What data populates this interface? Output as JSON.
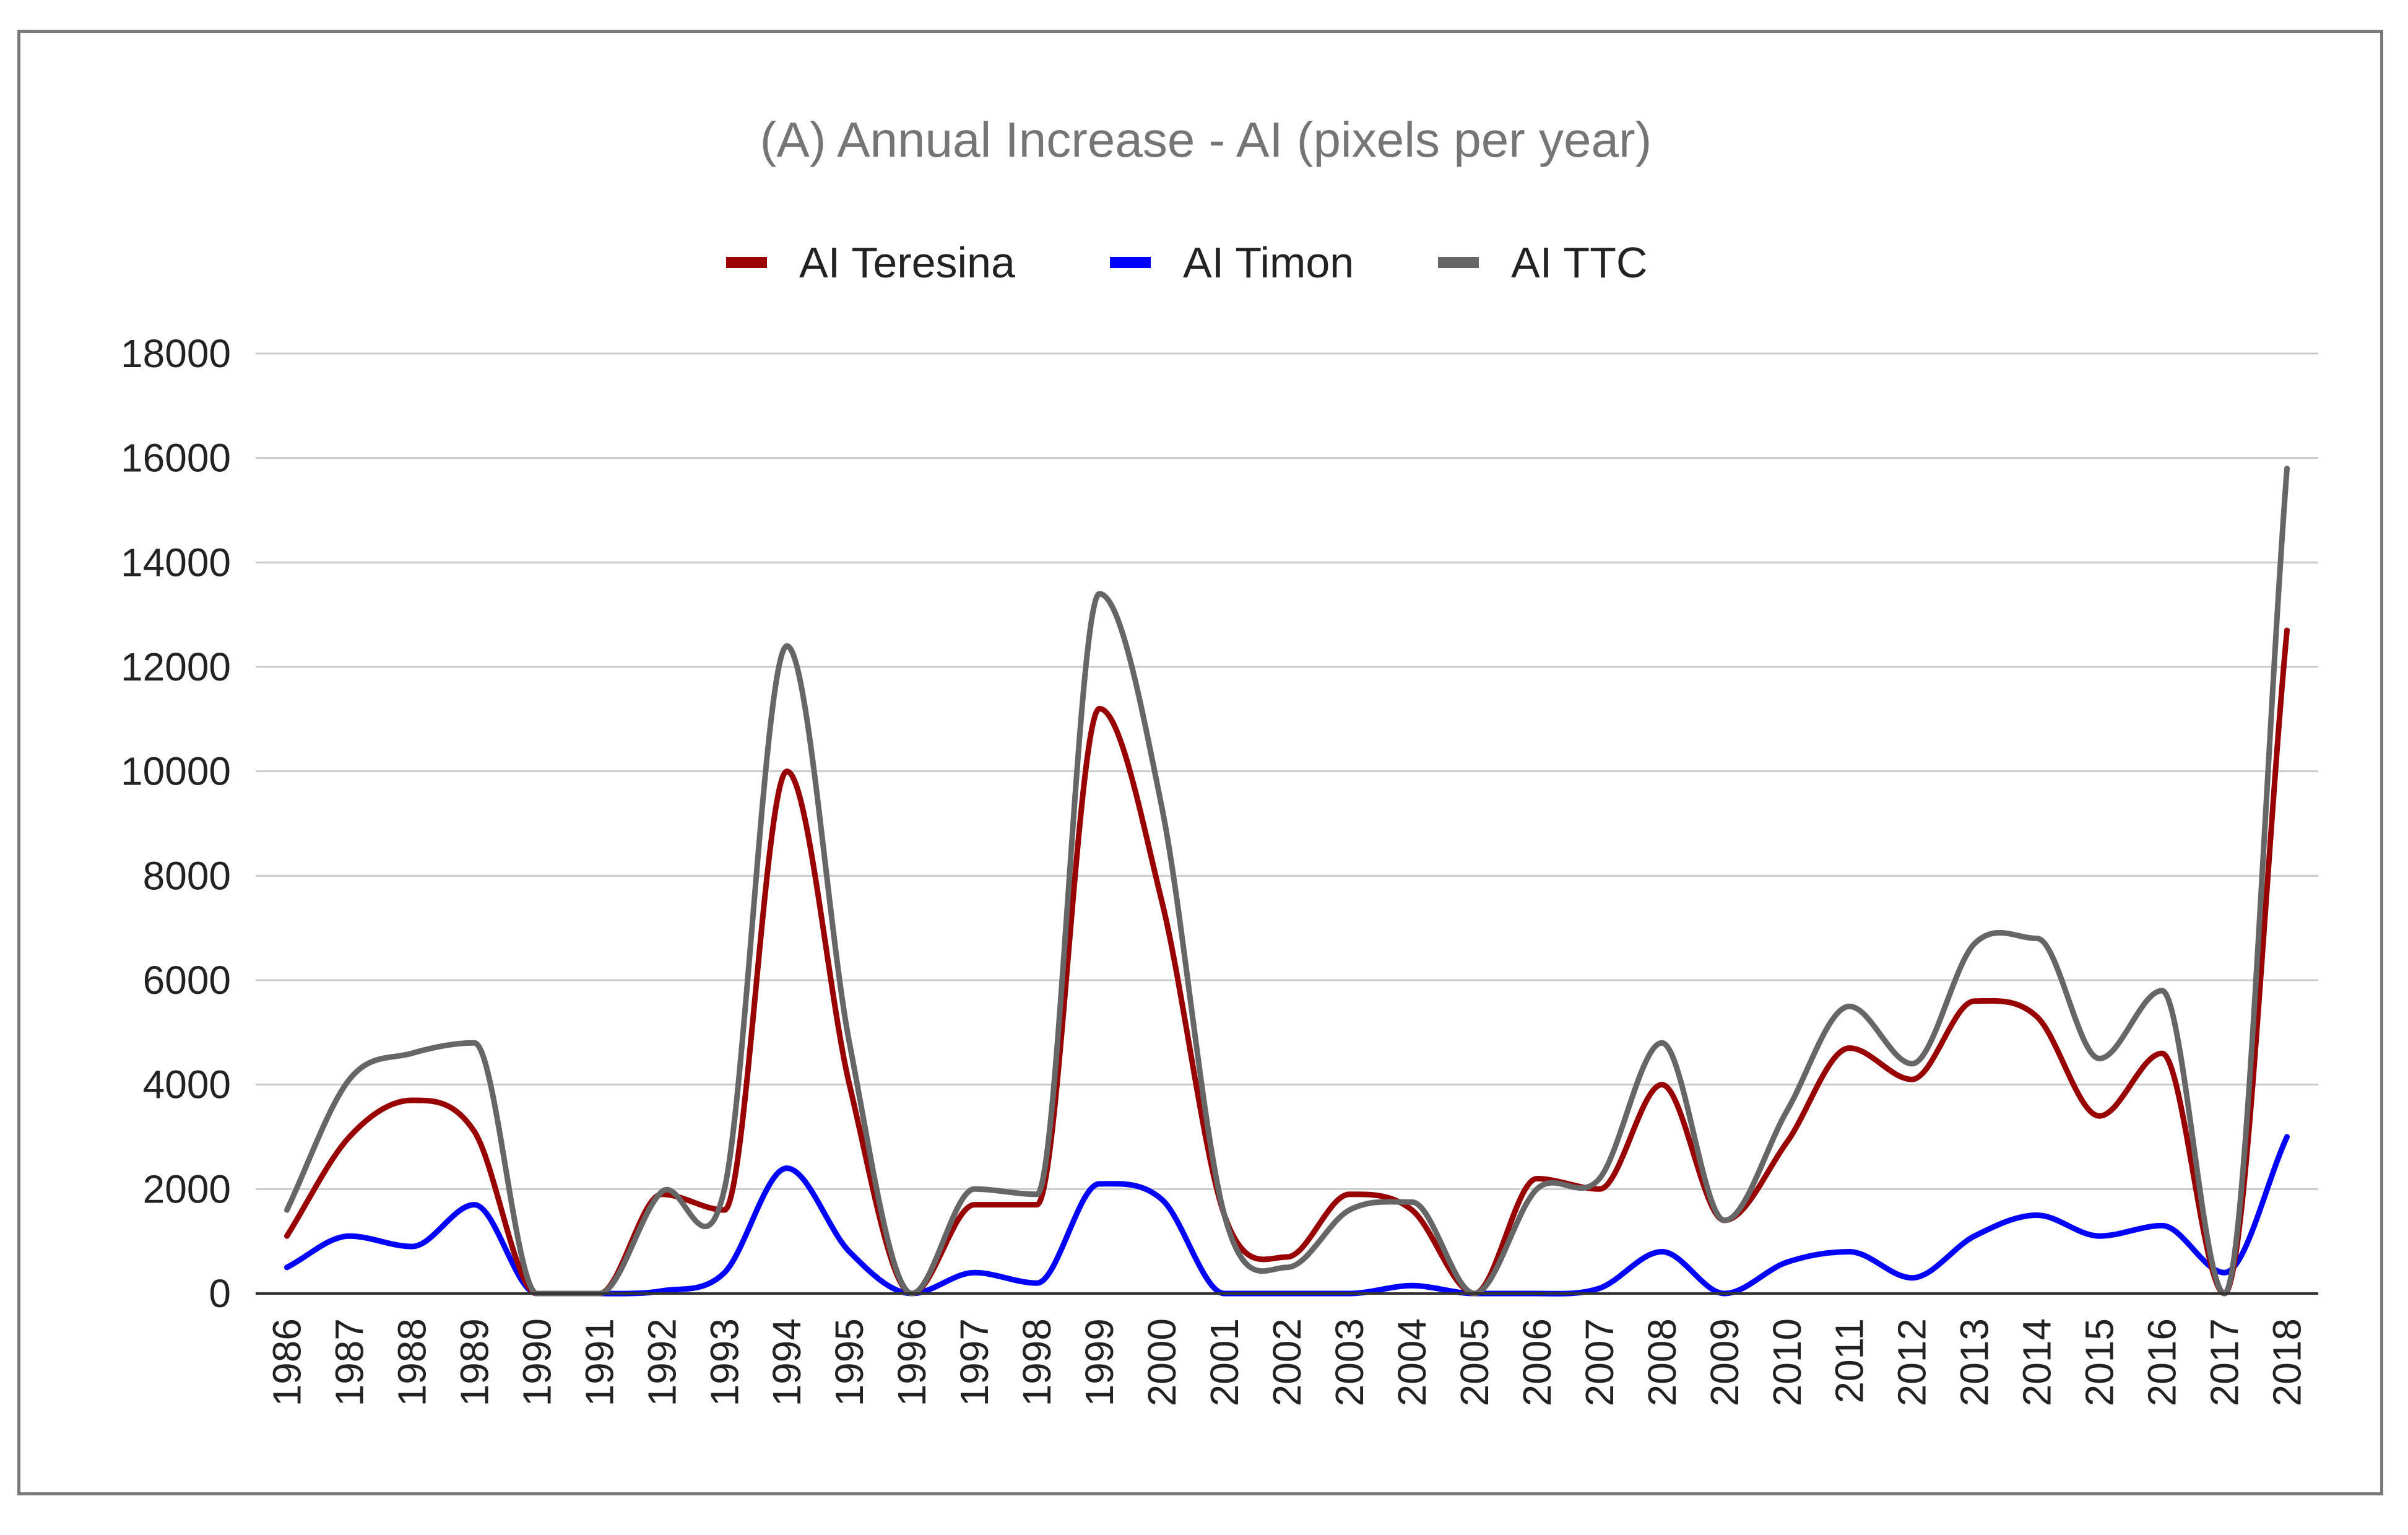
{
  "chart_data": {
    "type": "line",
    "title": "(A) Annual Increase - AI (pixels per year)",
    "xlabel": "",
    "ylabel": "",
    "ylim": [
      0,
      18000
    ],
    "yticks": [
      0,
      2000,
      4000,
      6000,
      8000,
      10000,
      12000,
      14000,
      16000,
      18000
    ],
    "grid": true,
    "legend_position": "top",
    "categories": [
      "1986",
      "1987",
      "1988",
      "1989",
      "1990",
      "1991",
      "1992",
      "1993",
      "1994",
      "1995",
      "1996",
      "1997",
      "1998",
      "1999",
      "2000",
      "2001",
      "2002",
      "2003",
      "2004",
      "2005",
      "2006",
      "2007",
      "2008",
      "2009",
      "2010",
      "2011",
      "2012",
      "2013",
      "2014",
      "2015",
      "2016",
      "2017",
      "2018"
    ],
    "series": [
      {
        "name": "AI Teresina",
        "color": "#990000",
        "values": [
          1100,
          3000,
          3700,
          3100,
          0,
          0,
          1900,
          1600,
          10000,
          4000,
          0,
          1700,
          1700,
          11200,
          7500,
          1500,
          700,
          1900,
          1600,
          0,
          2200,
          2000,
          4000,
          1400,
          2900,
          4700,
          4100,
          5600,
          5300,
          3400,
          4600,
          0,
          12700
        ]
      },
      {
        "name": "AI Timon",
        "color": "#0000ff",
        "values": [
          500,
          1100,
          900,
          1700,
          0,
          0,
          50,
          400,
          2400,
          800,
          0,
          400,
          200,
          2100,
          1800,
          0,
          0,
          0,
          150,
          0,
          0,
          100,
          800,
          0,
          600,
          800,
          300,
          1100,
          1500,
          1100,
          1300,
          400,
          3000
        ]
      },
      {
        "name": "AI TTC",
        "color": "#666666",
        "values": [
          1600,
          4100,
          4600,
          4800,
          0,
          0,
          1950,
          2000,
          12400,
          4800,
          0,
          2000,
          1900,
          13400,
          9300,
          1500,
          500,
          1600,
          1750,
          0,
          2000,
          2200,
          4800,
          1400,
          3500,
          5500,
          4400,
          6700,
          6800,
          4500,
          5800,
          0,
          15800
        ]
      }
    ]
  }
}
